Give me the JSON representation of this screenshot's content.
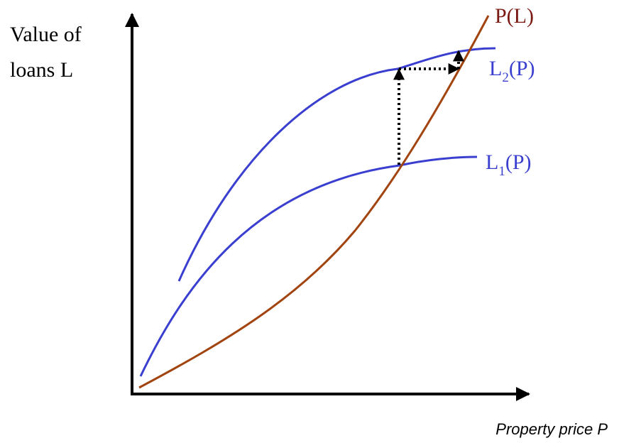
{
  "colors": {
    "axis": "#000000",
    "loan_curve": "#3a3fd0",
    "price_curve": "#a2440f",
    "price_label": "#7a1a12",
    "arrow": "#000000",
    "background": "#ffffff"
  },
  "labels": {
    "y_axis_line1": "Value of",
    "y_axis_line2": "loans L",
    "x_axis": "Property price P",
    "price_curve": "P(L)",
    "loan_curve_2_main": "L",
    "loan_curve_2_sub": "2",
    "loan_curve_2_tail": "(P)",
    "loan_curve_1_main": "L",
    "loan_curve_1_sub": "1",
    "loan_curve_1_tail": "(P)"
  },
  "icons": {
    "y_axis_arrow": "arrowhead-up",
    "x_axis_arrow": "arrowhead-right",
    "dotted_vertical_arrow": "dotted-arrow-up",
    "dotted_horizontal_arrow": "dotted-arrow-right",
    "dotted_short_arrow": "dotted-arrow-up"
  }
}
